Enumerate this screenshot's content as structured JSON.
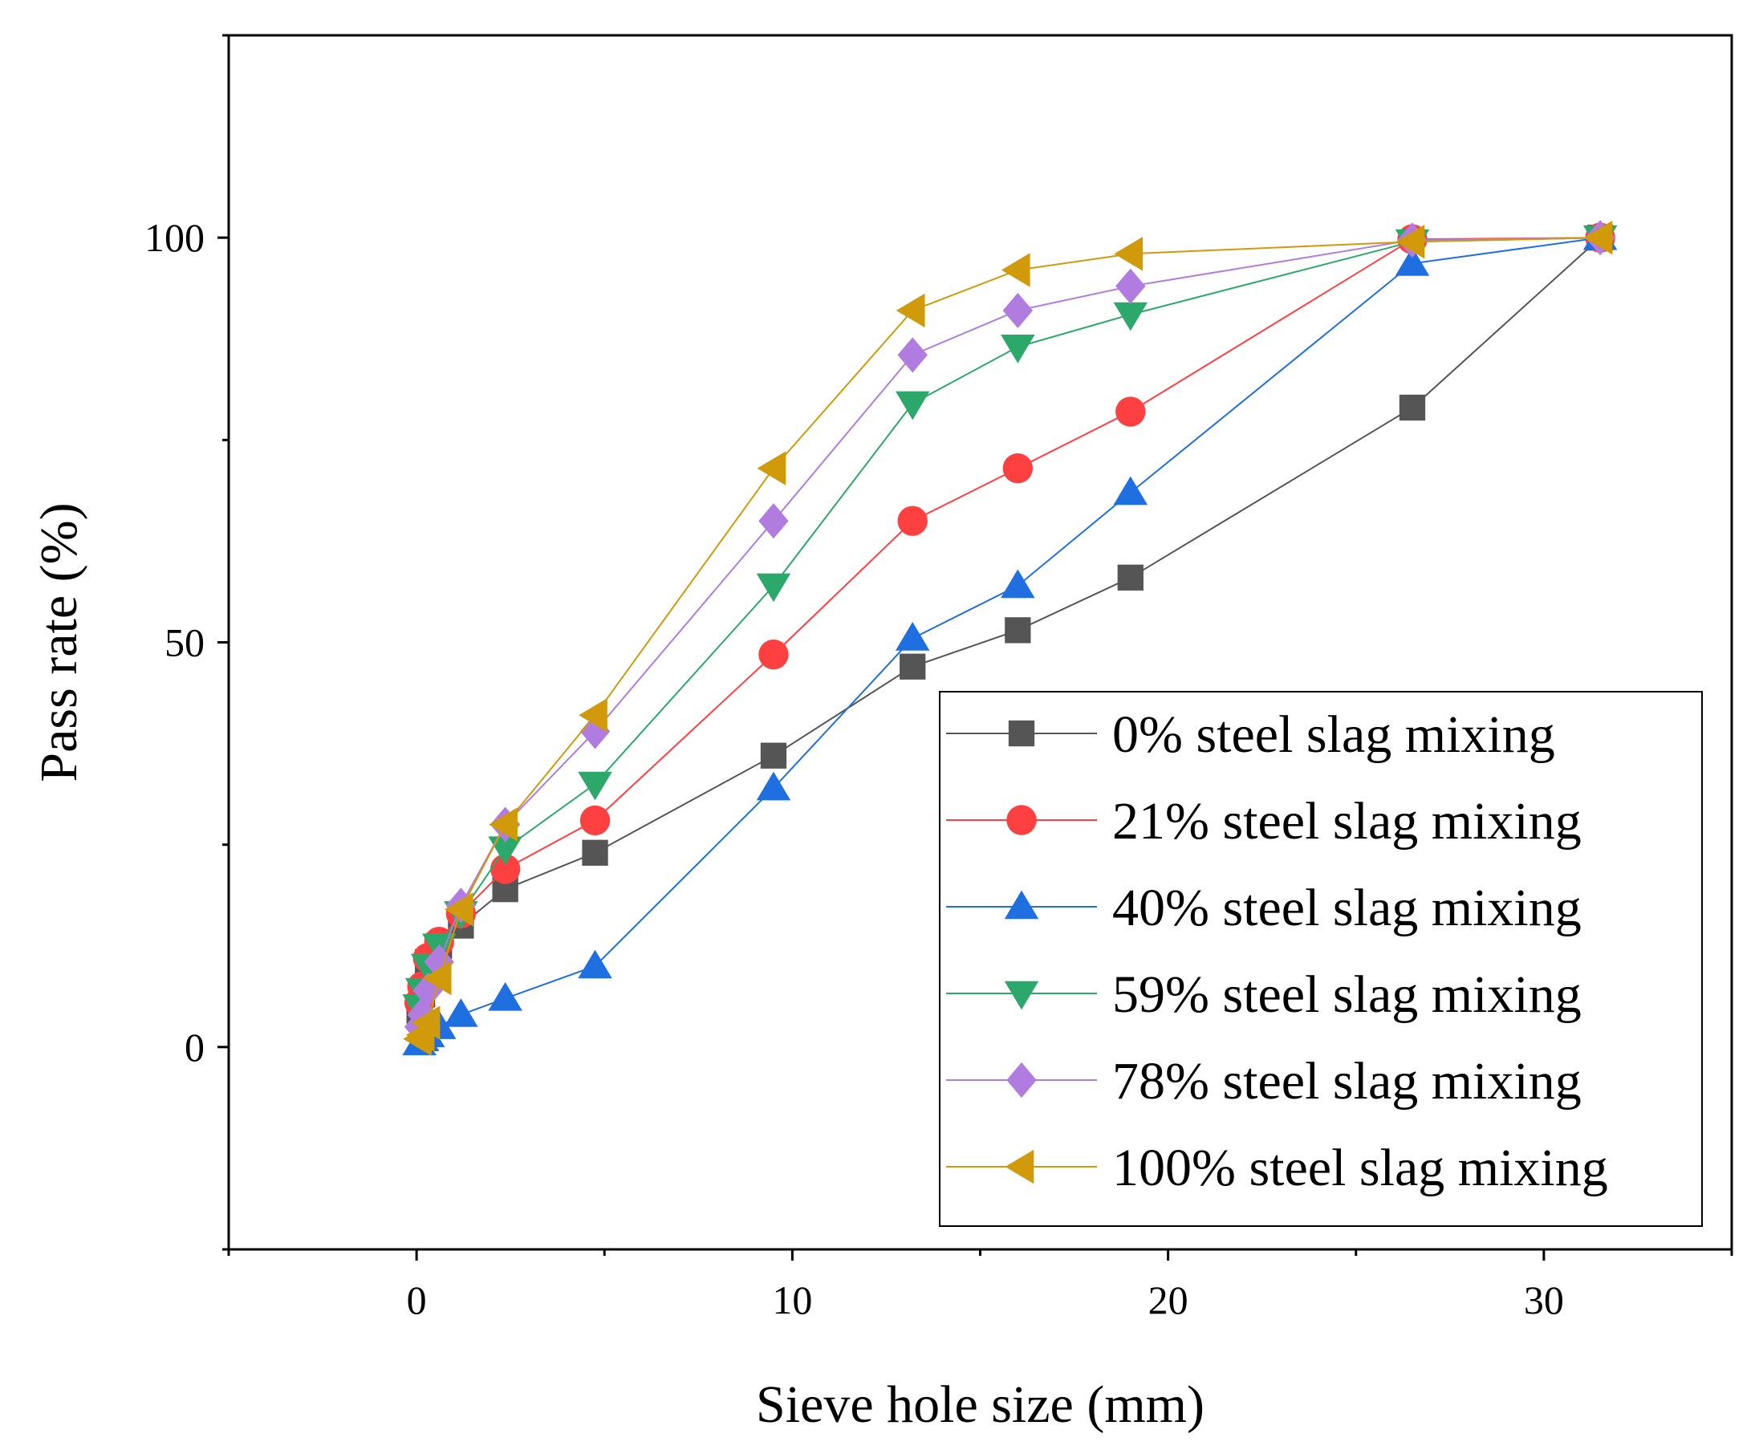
{
  "chart_data": {
    "type": "line",
    "xlabel": "Sieve hole size (mm)",
    "ylabel": "Pass rate (%)",
    "xlim": [
      -5,
      35
    ],
    "ylim": [
      -25,
      125
    ],
    "x_major_ticks": [
      0,
      10,
      20,
      30
    ],
    "x_minor_ticks": [
      -5,
      5,
      15,
      25,
      35
    ],
    "y_major_ticks": [
      0,
      50,
      100
    ],
    "y_minor_ticks": [
      -25,
      25,
      75,
      125
    ],
    "legend_position": "bottom-right",
    "grid": false,
    "x": [
      0.075,
      0.15,
      0.3,
      0.6,
      1.18,
      2.36,
      4.75,
      9.5,
      13.2,
      16,
      19,
      26.5,
      31.5
    ],
    "series": [
      {
        "name": "0% steel slag mixing",
        "color": "#555555",
        "marker": "square",
        "values": [
          4.5,
          6.5,
          10.5,
          12.5,
          15,
          19.5,
          24,
          36,
          47,
          51.5,
          58,
          79,
          100
        ]
      },
      {
        "name": "21% steel slag mixing",
        "color": "#ff4040",
        "marker": "circle",
        "values": [
          5.5,
          7.5,
          11,
          13,
          16.5,
          22,
          28,
          48.5,
          65,
          71.5,
          78.5,
          99.8,
          100
        ]
      },
      {
        "name": "40% steel slag mixing",
        "color": "#1f6fe0",
        "marker": "triangle-up",
        "values": [
          0.5,
          1,
          1.5,
          2.5,
          4,
          6,
          10,
          32,
          50.5,
          57,
          68.5,
          96.8,
          100
        ]
      },
      {
        "name": "59% steel slag mixing",
        "color": "#2ca86a",
        "marker": "triangle-down",
        "values": [
          5,
          7,
          10,
          12.5,
          16.5,
          24.5,
          32.5,
          57,
          79.5,
          86.5,
          90.5,
          99.5,
          100
        ]
      },
      {
        "name": "78% steel slag mixing",
        "color": "#b07ce0",
        "marker": "diamond",
        "values": [
          2.5,
          4,
          7,
          10.5,
          17.5,
          27.5,
          39,
          65,
          85.5,
          91,
          94,
          99.7,
          100
        ]
      },
      {
        "name": "100% steel slag mixing",
        "color": "#d09a0a",
        "marker": "triangle-left",
        "values": [
          1,
          1.5,
          3,
          8.5,
          17,
          27.5,
          41,
          71.5,
          91,
          96,
          98,
          99.5,
          100
        ]
      }
    ]
  }
}
